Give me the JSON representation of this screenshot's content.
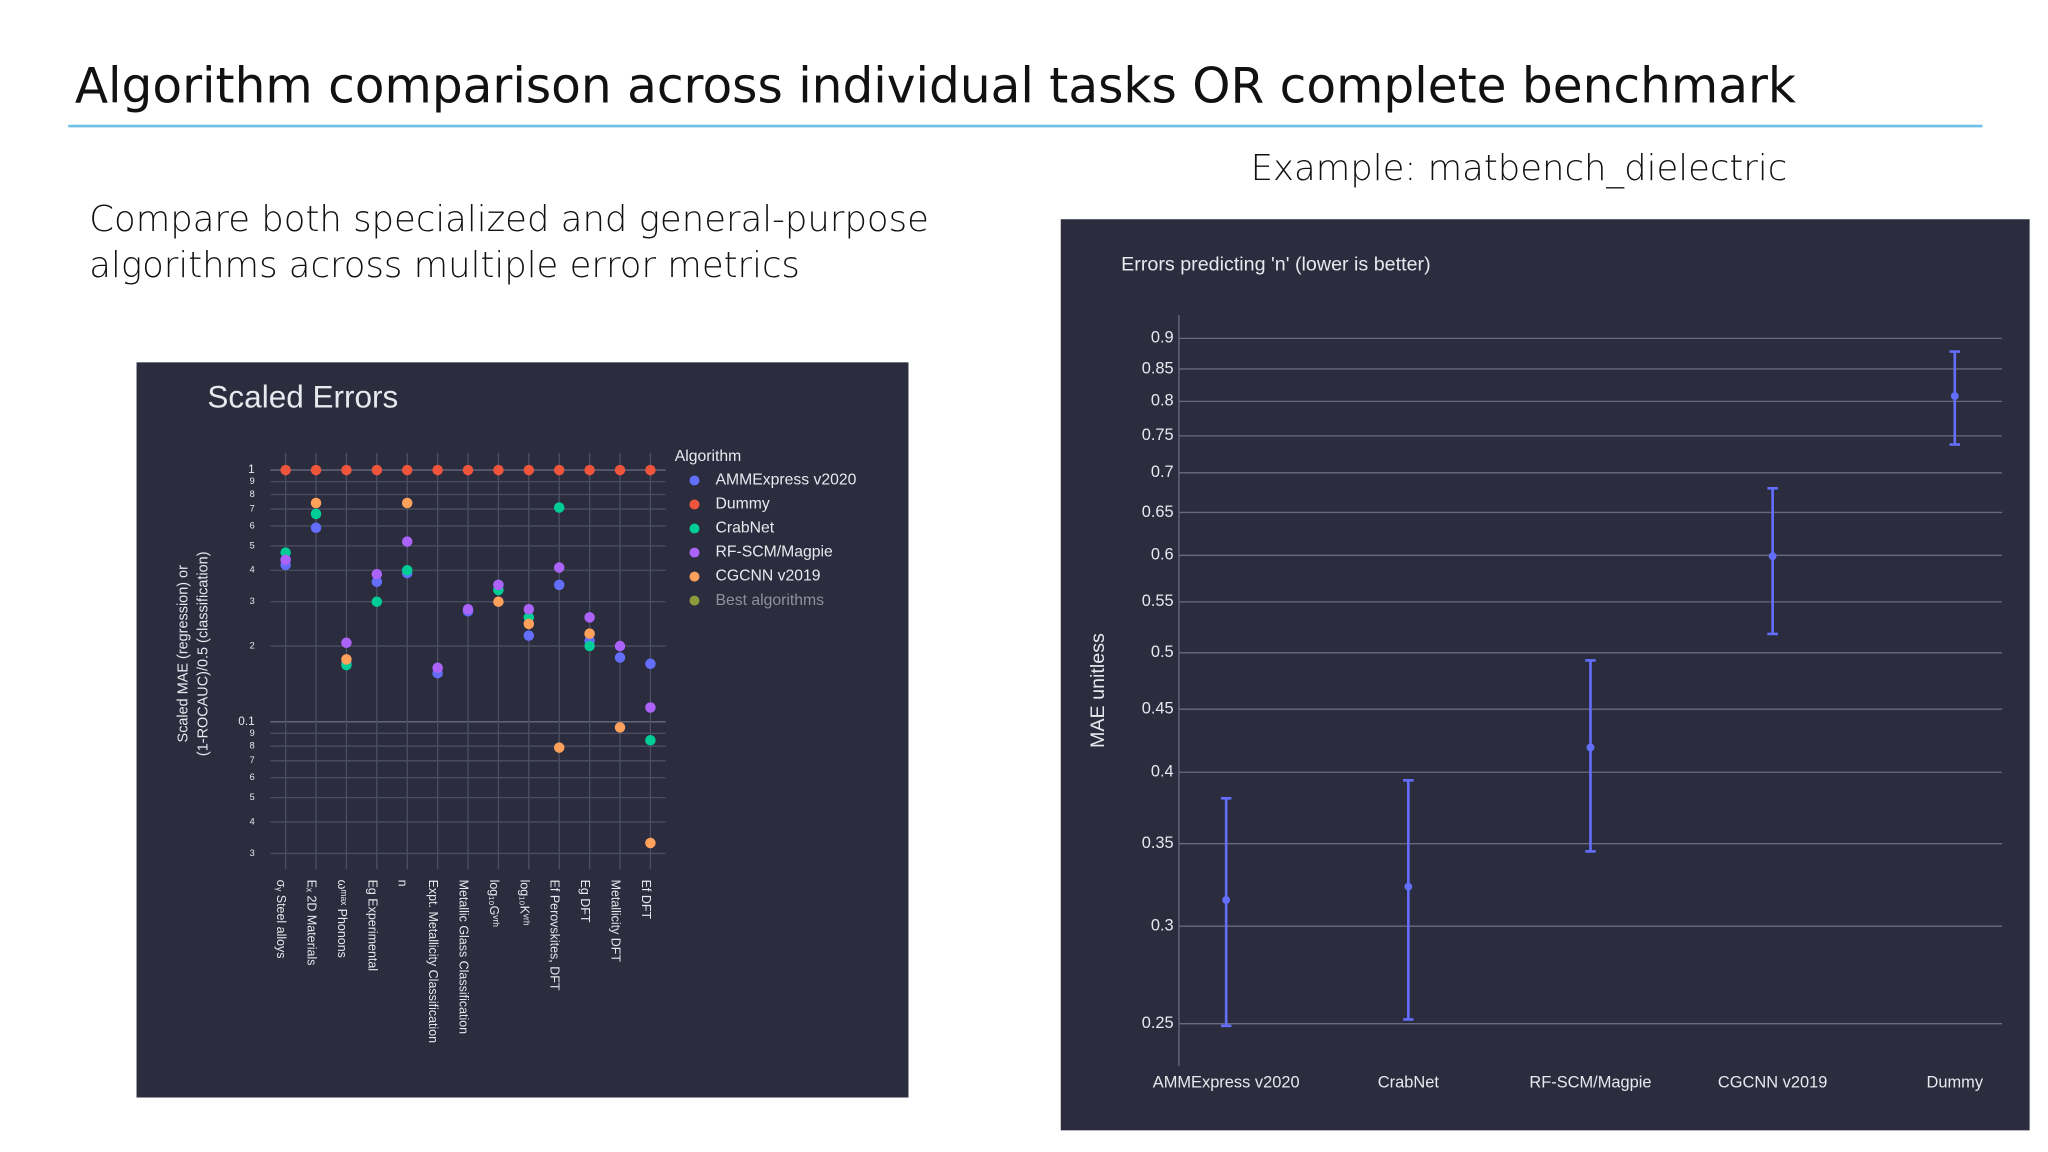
{
  "slide": {
    "title": "Algorithm comparison across individual tasks OR complete benchmark",
    "description": [
      "Compare both specialized and general-purpose",
      "algorithms across multiple error metrics"
    ],
    "example": "Example: matbench_dielectric"
  },
  "chart_data": [
    {
      "type": "scatter",
      "title": "Scaled Errors",
      "y_label": [
        "Scaled MAE (regression) or",
        "(1-ROCAUC)/0.5 (classification)"
      ],
      "log_y": true,
      "grid": true,
      "legend": "right",
      "legend_title": "Algorithm",
      "categories": [
        "σᵧ Steel alloys",
        "Eₓ 2D Materials",
        "ωᵐᵃˣ Phonons",
        "Eg Experimental",
        "n",
        "Expt. Metallicity Classification",
        "Metallic Glass Classification",
        "log₁₀Gᵛʳʰ",
        "log₁₀Kᵛʳʰ",
        "Ef Perovskites, DFT",
        "Eg DFT",
        "Metallicity DFT",
        "Ef DFT"
      ],
      "ylim": [
        0.026,
        1.17
      ],
      "yticks": [
        1,
        {
          "value": 0.9,
          "label": "9"
        },
        {
          "value": 0.8,
          "label": "8"
        },
        {
          "value": 0.7,
          "label": "7"
        },
        {
          "value": 0.6,
          "label": "6"
        },
        {
          "value": 0.5,
          "label": "5"
        },
        {
          "value": 0.4,
          "label": "4"
        },
        {
          "value": 0.3,
          "label": "3"
        },
        {
          "value": 0.2,
          "label": "2"
        },
        0.1,
        {
          "value": 0.09,
          "label": "9"
        },
        {
          "value": 0.08,
          "label": "8"
        },
        {
          "value": 0.07,
          "label": "7"
        },
        {
          "value": 0.06,
          "label": "6"
        },
        {
          "value": 0.05,
          "label": "5"
        },
        {
          "value": 0.04,
          "label": "4"
        },
        {
          "value": 0.03,
          "label": "3"
        }
      ],
      "series": [
        {
          "name": "AMMExpress v2020",
          "color": "#636efa",
          "values": [
            0.42,
            0.59,
            0.17,
            0.36,
            0.39,
            0.156,
            0.275,
            0.35,
            0.22,
            0.35,
            0.21,
            0.18,
            0.17
          ]
        },
        {
          "name": "Dummy",
          "color": "#ef553b",
          "values": [
            1,
            1,
            1,
            1,
            1,
            1,
            1,
            1,
            1,
            1,
            1,
            1,
            1
          ]
        },
        {
          "name": "CrabNet",
          "color": "#00cc96",
          "values": [
            0.47,
            0.67,
            0.168,
            0.3,
            0.4,
            null,
            null,
            0.334,
            0.26,
            0.71,
            0.2,
            null,
            0.0845
          ]
        },
        {
          "name": "RF-SCM/Magpie",
          "color": "#ab63fa",
          "values": [
            0.44,
            null,
            0.206,
            0.386,
            0.52,
            0.164,
            0.28,
            0.35,
            0.28,
            0.41,
            0.26,
            0.2,
            0.114
          ]
        },
        {
          "name": "CGCNN v2019",
          "color": "#ffa15a",
          "values": [
            null,
            0.74,
            0.177,
            null,
            0.74,
            null,
            null,
            0.3,
            0.245,
            0.079,
            0.224,
            0.095,
            0.033
          ]
        },
        {
          "name": "Best algorithms",
          "color": "#8c9a3a",
          "values": [
            null,
            null,
            null,
            null,
            null,
            null,
            null,
            null,
            null,
            null,
            null,
            null,
            null
          ]
        }
      ]
    },
    {
      "type": "errorbar",
      "title": "Errors predicting 'n' (lower is better)",
      "y_label": "MAE unitless",
      "log_y": true,
      "grid": true,
      "color": "#636efa",
      "categories": [
        "AMMExpress v2020",
        "CrabNet",
        "RF-SCM/Magpie",
        "CGCNN v2019",
        "Dummy"
      ],
      "values": [
        0.315,
        0.323,
        0.419,
        0.599,
        0.808
      ],
      "errors": [
        0.066,
        0.071,
        0.074,
        0.081,
        0.07
      ],
      "ylim": [
        0.231,
        0.94
      ],
      "yticks": [
        0.25,
        0.3,
        0.35,
        0.4,
        0.45,
        0.5,
        0.55,
        0.6,
        0.65,
        0.7,
        0.75,
        0.8,
        0.85,
        0.9
      ]
    }
  ]
}
